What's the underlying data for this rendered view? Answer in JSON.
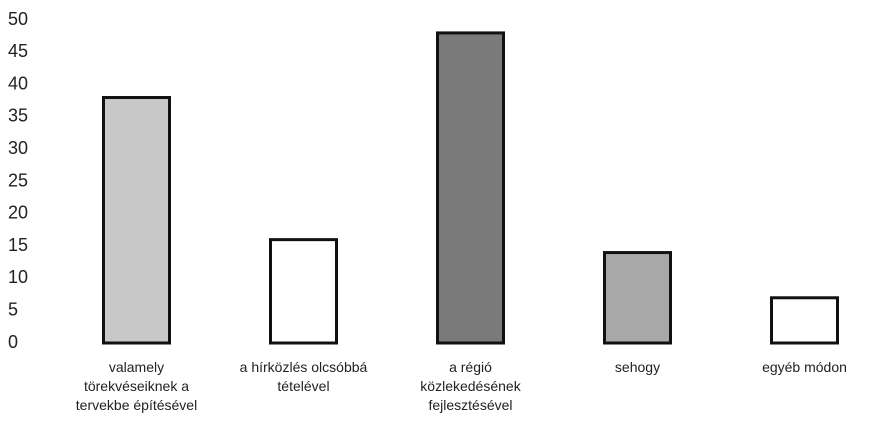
{
  "chart_data": {
    "type": "bar",
    "categories": [
      "valamely törekvéseiknek a tervekbe építésével",
      "a hírközlés olcsóbbá tételével",
      "a régió közlekedésének fejlesztésével",
      "sehogy",
      "egyéb módon"
    ],
    "values": [
      38,
      16,
      48,
      14,
      7
    ],
    "colors": [
      "#c8c8c8",
      "#ffffff",
      "#7a7a7a",
      "#a8a8a8",
      "#ffffff"
    ],
    "ylim": [
      0,
      50
    ],
    "yticks": [
      0,
      5,
      10,
      15,
      20,
      25,
      30,
      35,
      40,
      45,
      50
    ],
    "grid": false
  }
}
